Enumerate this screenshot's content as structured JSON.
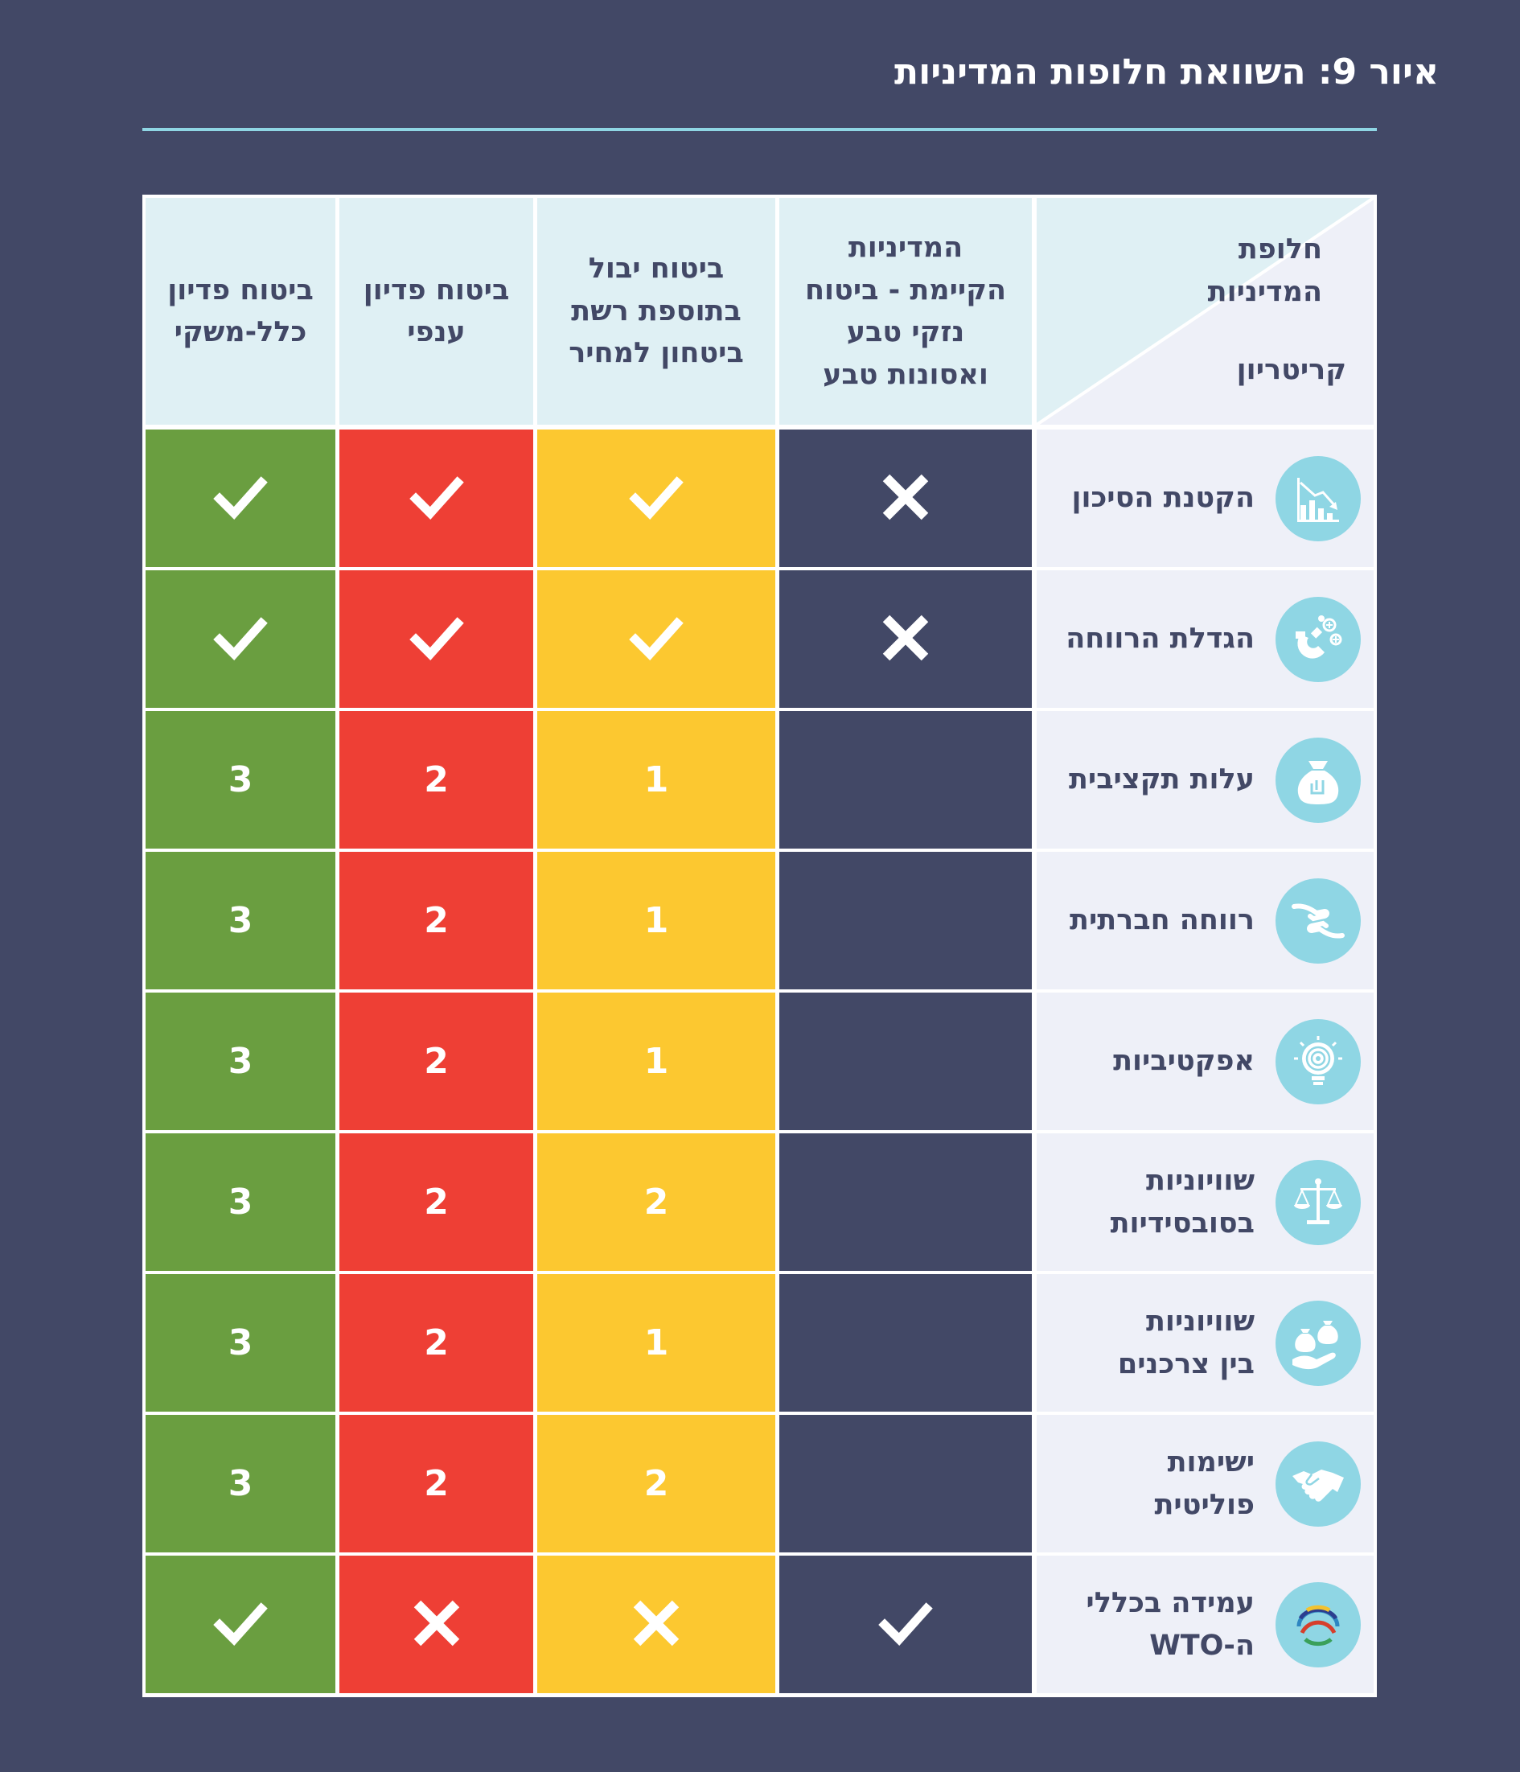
{
  "title": "איור 9: השוואת חלופות המדיניות",
  "table": {
    "corner_top": "חלופת\nהמדיניות",
    "corner_bottom": "קריטריון",
    "columns": [
      {
        "label": "המדיניות\nהקיימת - ביטוח\nנזקי טבע\nואסונות טבע",
        "color": "#424866"
      },
      {
        "label": "ביטוח יבול\nבתוספת רשת\nביטחון למחיר",
        "color": "#fcc830"
      },
      {
        "label": "ביטוח פדיון\nענפי",
        "color": "#ee3f35"
      },
      {
        "label": "ביטוח פדיון\nכלל-משקי",
        "color": "#6a9e40"
      }
    ],
    "rows": [
      {
        "criterion": "הקטנת הסיכון",
        "icon": "decreasing-chart-icon",
        "cells": [
          "cross",
          "check",
          "check",
          "check"
        ]
      },
      {
        "criterion": "הגדלת הרווחה",
        "icon": "magnet-plus-icon",
        "cells": [
          "cross",
          "check",
          "check",
          "check"
        ]
      },
      {
        "criterion": "עלות תקציבית",
        "icon": "money-bag-icon",
        "cells": [
          "",
          "1",
          "2",
          "3"
        ]
      },
      {
        "criterion": "רווחה חברתית",
        "icon": "helping-hands-icon",
        "cells": [
          "",
          "1",
          "2",
          "3"
        ]
      },
      {
        "criterion": "אפקטיביות",
        "icon": "target-bulb-icon",
        "cells": [
          "",
          "1",
          "2",
          "3"
        ]
      },
      {
        "criterion": "שוויוניות\nבסובסידיות",
        "icon": "balance-scale-icon",
        "cells": [
          "",
          "2",
          "2",
          "3"
        ]
      },
      {
        "criterion": "שוויוניות\nבין צרכנים",
        "icon": "money-bags-hand-icon",
        "cells": [
          "",
          "1",
          "2",
          "3"
        ]
      },
      {
        "criterion": "ישימות\nפוליטית",
        "icon": "handshake-icon",
        "cells": [
          "",
          "2",
          "2",
          "3"
        ]
      },
      {
        "criterion": "עמידה בכללי\nה-WTO",
        "icon": "wto-logo-icon",
        "cells": [
          "check",
          "cross",
          "cross",
          "check"
        ]
      }
    ]
  }
}
